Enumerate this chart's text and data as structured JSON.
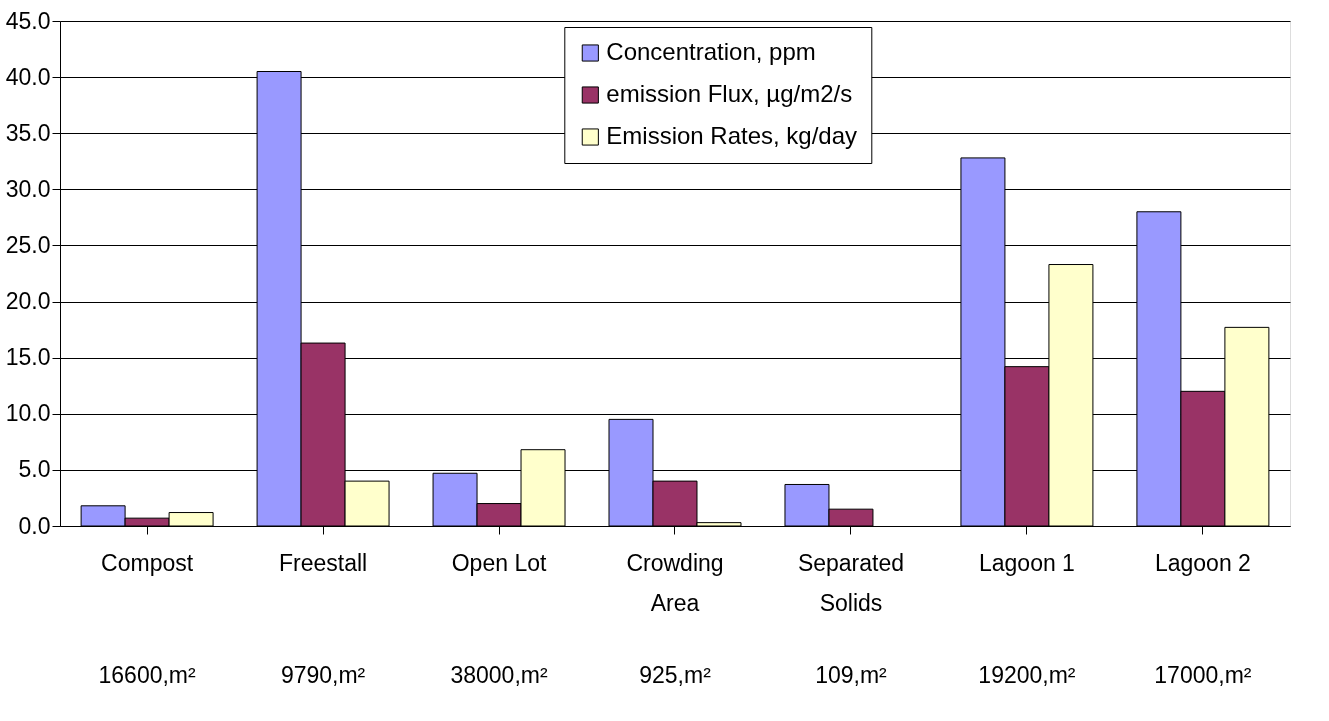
{
  "chart_data": {
    "type": "bar",
    "categories": [
      "Compost",
      "Freestall",
      "Open Lot",
      "Crowding\nArea",
      "Separated\nSolids",
      "Lagoon 1",
      "Lagoon 2"
    ],
    "series": [
      {
        "name": "Concentration, ppm",
        "color": "#9999ff",
        "values": [
          1.8,
          40.5,
          4.7,
          9.5,
          3.7,
          32.8,
          28.0
        ]
      },
      {
        "name": "emission Flux, µg/m2/s",
        "color": "#993366",
        "values": [
          0.7,
          16.3,
          2.0,
          4.0,
          1.5,
          14.2,
          12.0
        ]
      },
      {
        "name": "Emission Rates, kg/day",
        "color": "#ffffcc",
        "values": [
          1.2,
          4.0,
          6.8,
          0.3,
          null,
          23.3,
          17.7
        ]
      }
    ],
    "ylim": [
      0,
      45
    ],
    "yticks": [
      {
        "value": 0,
        "label": "0.0"
      },
      {
        "value": 5,
        "label": "5.0"
      },
      {
        "value": 10,
        "label": "10.0"
      },
      {
        "value": 15,
        "label": "15.0"
      },
      {
        "value": 20,
        "label": "20.0"
      },
      {
        "value": 25,
        "label": "25.0"
      },
      {
        "value": 30,
        "label": "30.0"
      },
      {
        "value": 35,
        "label": "35.0"
      },
      {
        "value": 40,
        "label": "40.0"
      },
      {
        "value": 45,
        "label": "45.0"
      }
    ],
    "annotations": [
      "16600,m²",
      "9790,m²",
      "38000,m²",
      "925,m²",
      "109,m²",
      "19200,m²",
      "17000,m²"
    ],
    "grid": "y",
    "legend": "top"
  }
}
